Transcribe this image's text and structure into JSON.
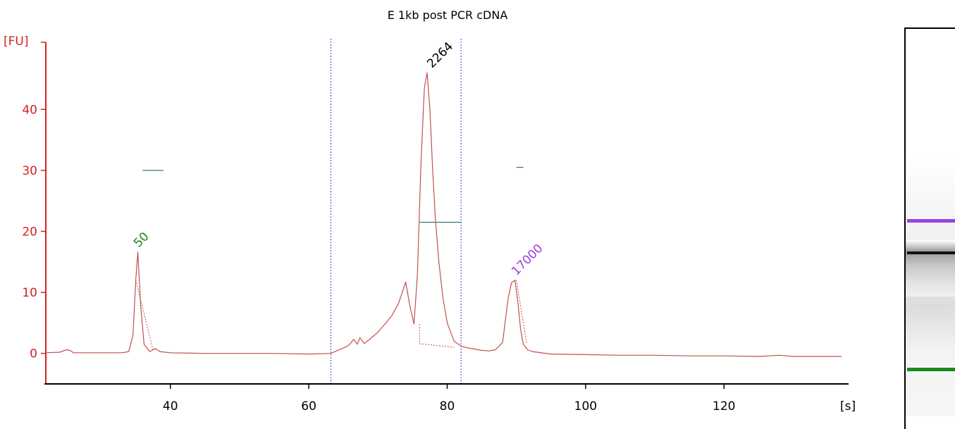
{
  "chart_data": {
    "type": "line",
    "title": "E 1kb post PCR cDNA",
    "ylabel": "[FU]",
    "xlabel": "[s]",
    "xlim": [
      22,
      138
    ],
    "ylim": [
      -5,
      51
    ],
    "xticks": [
      40,
      60,
      80,
      100,
      120
    ],
    "yticks": [
      0,
      10,
      20,
      30,
      40
    ],
    "grid": false,
    "colors": {
      "axis": "#d42020",
      "trace": "#c0504d",
      "region": "#4040d0",
      "ladder_low": "#1a8a1a",
      "ladder_high": "#9b40e0",
      "peak_label": "#000000",
      "bar": "#3a7a70"
    },
    "series": [
      {
        "x": [
          22,
          24,
          25,
          25.5,
          26,
          27,
          28,
          30,
          32,
          33,
          34,
          34.6,
          35,
          35.3,
          35.7,
          36.2,
          37,
          37.8,
          38.5,
          40,
          45,
          50,
          55,
          60,
          63.2,
          64,
          65,
          65.6,
          66,
          66.5,
          67,
          67.4,
          68,
          69,
          70,
          71,
          72,
          73,
          73.5,
          74,
          74.6,
          75.2,
          75.7,
          76.2,
          76.7,
          77.1,
          77.5,
          77.9,
          78.3,
          78.8,
          79.4,
          80,
          81,
          82,
          83,
          84,
          85,
          86,
          87,
          88,
          88.8,
          89.3,
          89.8,
          90.2,
          90.6,
          91,
          91.6,
          92.3,
          93,
          95,
          100,
          105,
          110,
          115,
          120,
          125,
          128,
          130,
          135,
          137
        ],
        "y": [
          0.1,
          0.2,
          0.6,
          0.5,
          0.1,
          0.1,
          0.1,
          0.1,
          0.1,
          0.1,
          0.3,
          3,
          12,
          16.6,
          8,
          1.5,
          0.3,
          0.8,
          0.3,
          0.1,
          0,
          0,
          0,
          -0.1,
          0,
          0.4,
          0.9,
          1.2,
          1.6,
          2.3,
          1.5,
          2.6,
          1.6,
          2.5,
          3.5,
          4.8,
          6.2,
          8.3,
          10,
          11.7,
          7.8,
          4.8,
          13,
          31,
          43.5,
          46,
          40,
          30,
          22,
          15,
          9,
          5,
          2,
          1.2,
          0.9,
          0.7,
          0.5,
          0.4,
          0.6,
          1.8,
          9,
          11.6,
          12,
          8.5,
          4,
          1.5,
          0.6,
          0.3,
          0.2,
          -0.1,
          -0.2,
          -0.3,
          -0.3,
          -0.4,
          -0.4,
          -0.5,
          -0.3,
          -0.5,
          -0.5,
          -0.5
        ]
      }
    ],
    "baselines": [
      {
        "x": [
          35,
          37.5
        ],
        "y": [
          12,
          0.5
        ]
      },
      {
        "x": [
          76,
          81
        ],
        "y": [
          1.6,
          1.0
        ]
      },
      {
        "x": [
          90,
          91.5
        ],
        "y": [
          12,
          1.5
        ]
      }
    ],
    "region_lines_x": [
      63.2,
      82
    ],
    "bars": [
      {
        "x": [
          36,
          39
        ],
        "y": 30
      },
      {
        "x": [
          76,
          82
        ],
        "y": 21.5
      },
      {
        "x": [
          90,
          91
        ],
        "y": 30.5
      }
    ],
    "peaks": [
      {
        "label": "50",
        "x": 35.2,
        "y": 16.6,
        "color": "#1a8a1a"
      },
      {
        "label": "2264",
        "x": 77.6,
        "y": 46,
        "color": "#000000"
      },
      {
        "label": "17000",
        "x": 89.8,
        "y": 12,
        "color": "#9b40e0"
      }
    ]
  },
  "gel": {
    "upper_marker_color": "#9b40e0",
    "lower_marker_color": "#1a8a1a",
    "band_color": "#111111"
  }
}
